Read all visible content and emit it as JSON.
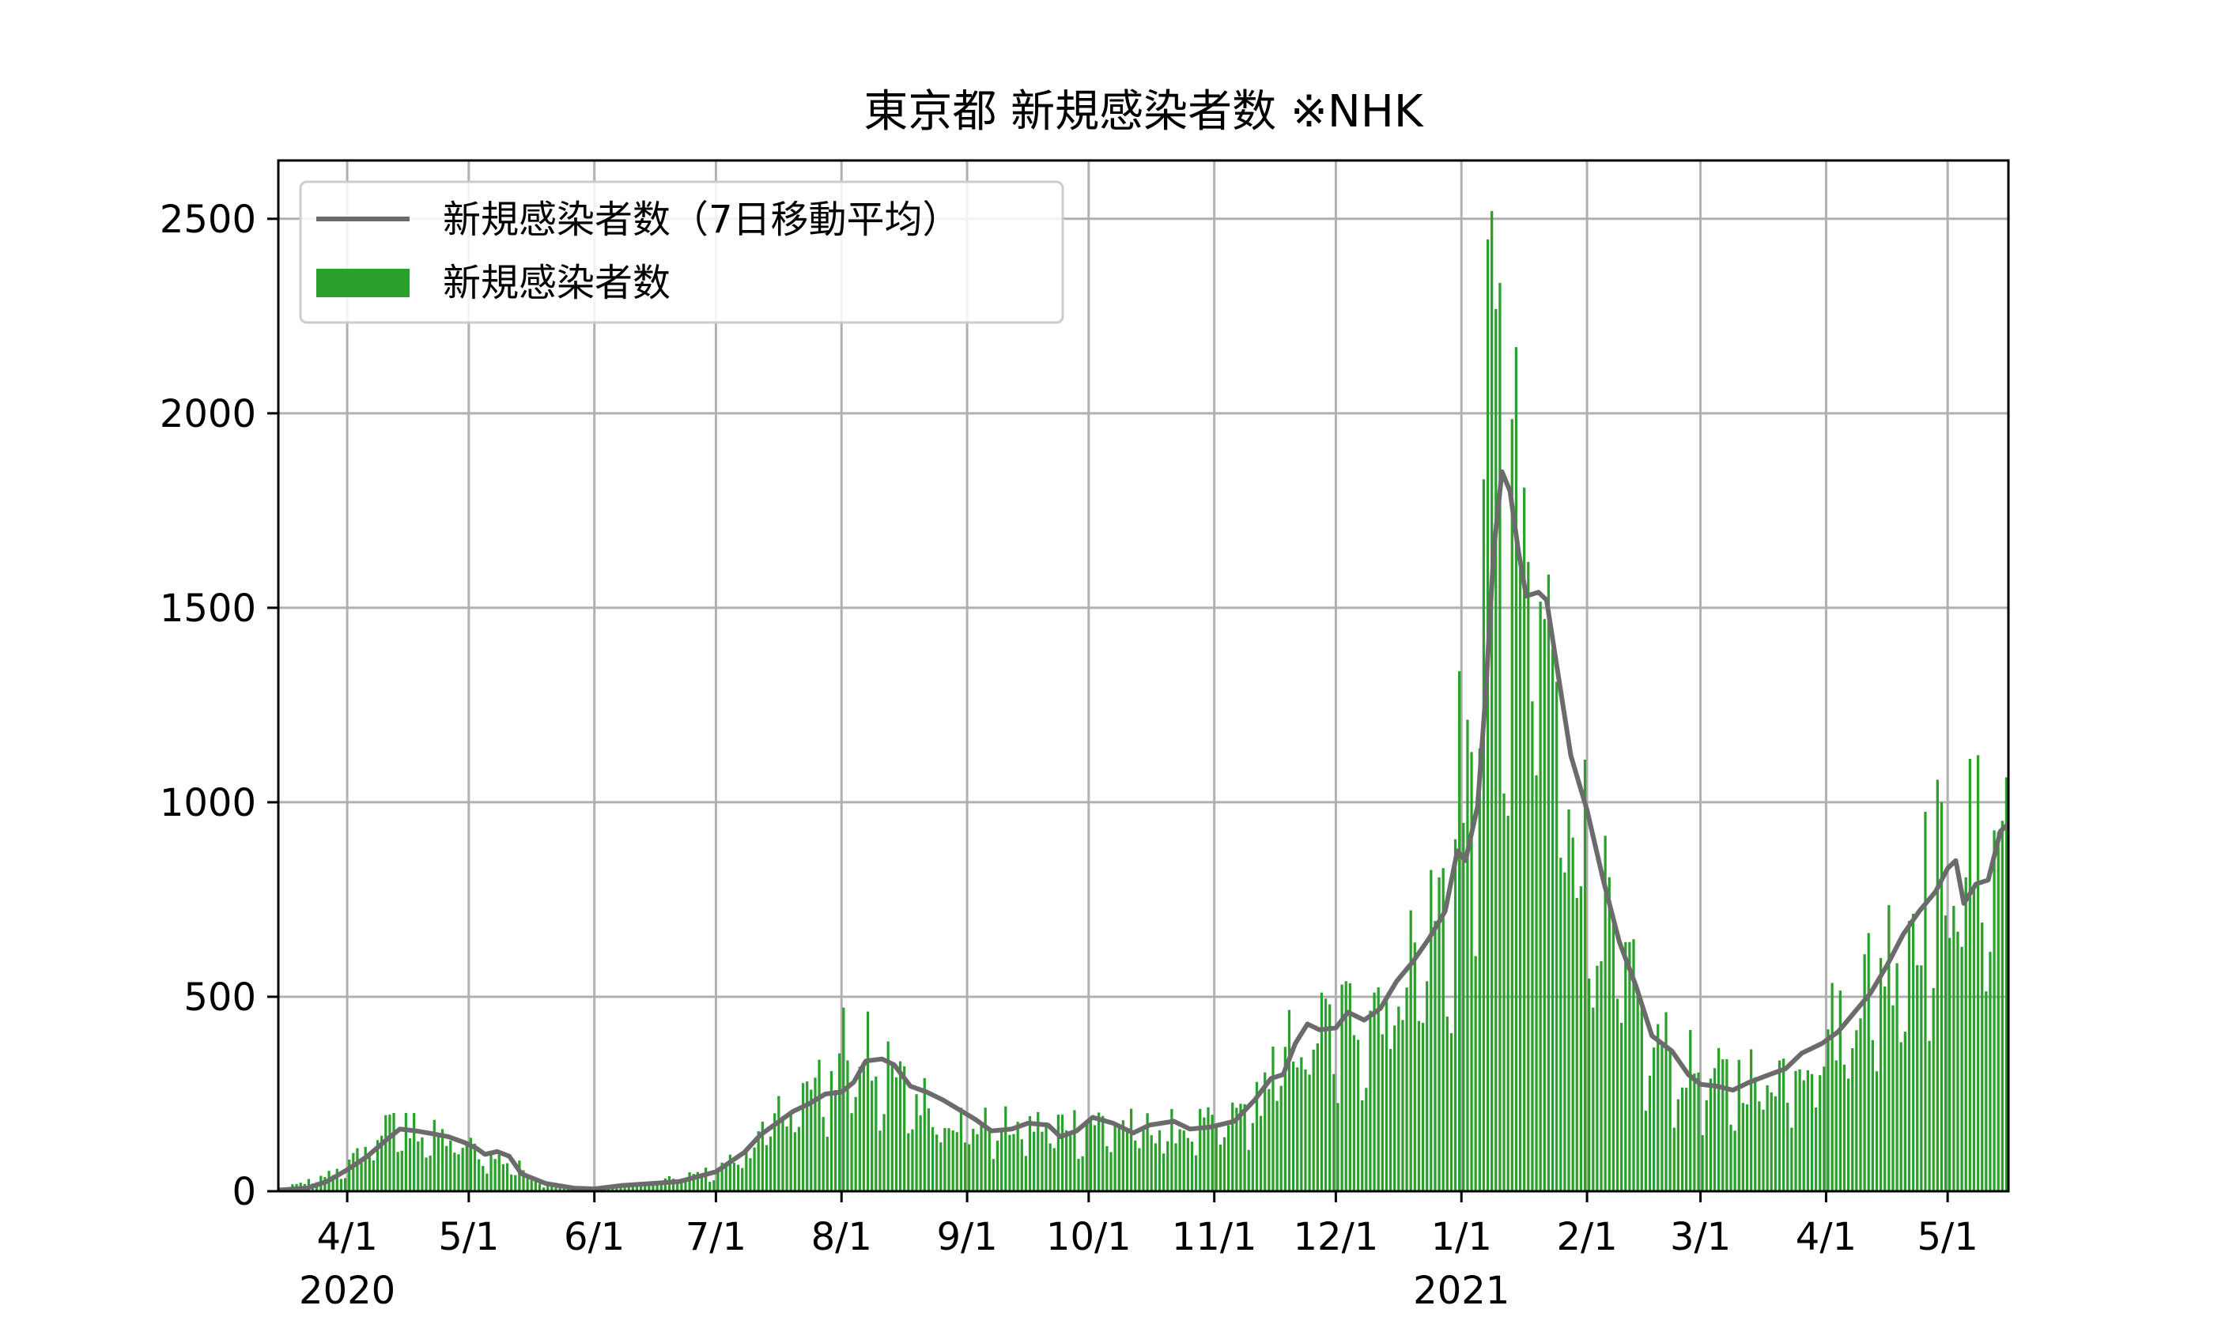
{
  "chart_data": {
    "type": "bar",
    "title": "東京都 新規感染者数 ※NHK",
    "xlabel": "",
    "ylabel": "",
    "x_range": [
      "2020-03-15",
      "2021-05-16"
    ],
    "ylim": [
      0,
      2650
    ],
    "x_ticks": [
      {
        "date": "2020-04-01",
        "label": "4/1"
      },
      {
        "date": "2020-05-01",
        "label": "5/1"
      },
      {
        "date": "2020-06-01",
        "label": "6/1"
      },
      {
        "date": "2020-07-01",
        "label": "7/1"
      },
      {
        "date": "2020-08-01",
        "label": "8/1"
      },
      {
        "date": "2020-09-01",
        "label": "9/1"
      },
      {
        "date": "2020-10-01",
        "label": "10/1"
      },
      {
        "date": "2020-11-01",
        "label": "11/1"
      },
      {
        "date": "2020-12-01",
        "label": "12/1"
      },
      {
        "date": "2021-01-01",
        "label": "1/1"
      },
      {
        "date": "2021-02-01",
        "label": "2/1"
      },
      {
        "date": "2021-03-01",
        "label": "3/1"
      },
      {
        "date": "2021-04-01",
        "label": "4/1"
      },
      {
        "date": "2021-05-01",
        "label": "5/1"
      }
    ],
    "year_labels": [
      {
        "date": "2020-04-01",
        "label": "2020"
      },
      {
        "date": "2021-01-01",
        "label": "2021"
      }
    ],
    "y_ticks": [
      0,
      500,
      1000,
      1500,
      2000,
      2500
    ],
    "grid": true,
    "legend_position": "top-left",
    "series": [
      {
        "name": "新規感染者数（7日移動平均）",
        "type": "line",
        "color": "#6b6b6b",
        "points": [
          [
            "2020-03-15",
            3
          ],
          [
            "2020-03-22",
            8
          ],
          [
            "2020-03-27",
            25
          ],
          [
            "2020-04-01",
            55
          ],
          [
            "2020-04-06",
            90
          ],
          [
            "2020-04-11",
            135
          ],
          [
            "2020-04-14",
            160
          ],
          [
            "2020-04-18",
            155
          ],
          [
            "2020-04-22",
            148
          ],
          [
            "2020-04-26",
            140
          ],
          [
            "2020-04-30",
            125
          ],
          [
            "2020-05-03",
            110
          ],
          [
            "2020-05-05",
            95
          ],
          [
            "2020-05-08",
            102
          ],
          [
            "2020-05-11",
            90
          ],
          [
            "2020-05-14",
            45
          ],
          [
            "2020-05-20",
            20
          ],
          [
            "2020-05-27",
            8
          ],
          [
            "2020-06-01",
            6
          ],
          [
            "2020-06-08",
            15
          ],
          [
            "2020-06-15",
            20
          ],
          [
            "2020-06-22",
            25
          ],
          [
            "2020-07-01",
            50
          ],
          [
            "2020-07-08",
            100
          ],
          [
            "2020-07-12",
            145
          ],
          [
            "2020-07-16",
            175
          ],
          [
            "2020-07-20",
            205
          ],
          [
            "2020-07-24",
            225
          ],
          [
            "2020-07-28",
            250
          ],
          [
            "2020-08-01",
            255
          ],
          [
            "2020-08-04",
            280
          ],
          [
            "2020-08-07",
            335
          ],
          [
            "2020-08-11",
            340
          ],
          [
            "2020-08-14",
            325
          ],
          [
            "2020-08-18",
            270
          ],
          [
            "2020-08-22",
            255
          ],
          [
            "2020-08-26",
            235
          ],
          [
            "2020-08-30",
            210
          ],
          [
            "2020-09-03",
            185
          ],
          [
            "2020-09-07",
            155
          ],
          [
            "2020-09-12",
            160
          ],
          [
            "2020-09-16",
            175
          ],
          [
            "2020-09-21",
            170
          ],
          [
            "2020-09-24",
            140
          ],
          [
            "2020-09-28",
            155
          ],
          [
            "2020-10-02",
            190
          ],
          [
            "2020-10-07",
            175
          ],
          [
            "2020-10-12",
            150
          ],
          [
            "2020-10-16",
            170
          ],
          [
            "2020-10-22",
            180
          ],
          [
            "2020-10-26",
            160
          ],
          [
            "2020-10-31",
            165
          ],
          [
            "2020-11-06",
            180
          ],
          [
            "2020-11-11",
            235
          ],
          [
            "2020-11-15",
            290
          ],
          [
            "2020-11-18",
            300
          ],
          [
            "2020-11-21",
            380
          ],
          [
            "2020-11-24",
            430
          ],
          [
            "2020-11-27",
            415
          ],
          [
            "2020-12-01",
            420
          ],
          [
            "2020-12-04",
            460
          ],
          [
            "2020-12-08",
            440
          ],
          [
            "2020-12-12",
            470
          ],
          [
            "2020-12-16",
            540
          ],
          [
            "2020-12-20",
            590
          ],
          [
            "2020-12-24",
            650
          ],
          [
            "2020-12-28",
            720
          ],
          [
            "2020-12-31",
            875
          ],
          [
            "2021-01-02",
            850
          ],
          [
            "2021-01-05",
            990
          ],
          [
            "2021-01-07",
            1280
          ],
          [
            "2021-01-09",
            1650
          ],
          [
            "2021-01-11",
            1850
          ],
          [
            "2021-01-13",
            1800
          ],
          [
            "2021-01-15",
            1650
          ],
          [
            "2021-01-17",
            1530
          ],
          [
            "2021-01-20",
            1540
          ],
          [
            "2021-01-22",
            1520
          ],
          [
            "2021-01-25",
            1320
          ],
          [
            "2021-01-28",
            1120
          ],
          [
            "2021-02-01",
            980
          ],
          [
            "2021-02-05",
            800
          ],
          [
            "2021-02-09",
            640
          ],
          [
            "2021-02-13",
            530
          ],
          [
            "2021-02-17",
            400
          ],
          [
            "2021-02-22",
            360
          ],
          [
            "2021-02-26",
            300
          ],
          [
            "2021-03-01",
            275
          ],
          [
            "2021-03-05",
            270
          ],
          [
            "2021-03-09",
            260
          ],
          [
            "2021-03-13",
            280
          ],
          [
            "2021-03-18",
            300
          ],
          [
            "2021-03-22",
            315
          ],
          [
            "2021-03-26",
            355
          ],
          [
            "2021-03-31",
            380
          ],
          [
            "2021-04-04",
            410
          ],
          [
            "2021-04-08",
            460
          ],
          [
            "2021-04-12",
            510
          ],
          [
            "2021-04-16",
            580
          ],
          [
            "2021-04-20",
            660
          ],
          [
            "2021-04-24",
            720
          ],
          [
            "2021-04-28",
            770
          ],
          [
            "2021-05-01",
            830
          ],
          [
            "2021-05-03",
            850
          ],
          [
            "2021-05-05",
            740
          ],
          [
            "2021-05-08",
            790
          ],
          [
            "2021-05-11",
            800
          ],
          [
            "2021-05-14",
            925
          ],
          [
            "2021-05-16",
            945
          ]
        ]
      },
      {
        "name": "新規感染者数",
        "type": "bar",
        "color": "#2ca02c",
        "anchors": [
          [
            "2020-03-15",
            5
          ],
          [
            "2020-03-25",
            35
          ],
          [
            "2020-04-01",
            70
          ],
          [
            "2020-04-08",
            150
          ],
          [
            "2020-04-14",
            175
          ],
          [
            "2020-04-20",
            150
          ],
          [
            "2020-04-28",
            130
          ],
          [
            "2020-05-05",
            95
          ],
          [
            "2020-05-12",
            70
          ],
          [
            "2020-05-20",
            15
          ],
          [
            "2020-06-01",
            8
          ],
          [
            "2020-06-15",
            22
          ],
          [
            "2020-07-01",
            55
          ],
          [
            "2020-07-10",
            125
          ],
          [
            "2020-07-18",
            230
          ],
          [
            "2020-07-28",
            285
          ],
          [
            "2020-08-03",
            360
          ],
          [
            "2020-08-10",
            320
          ],
          [
            "2020-08-20",
            245
          ],
          [
            "2020-09-01",
            175
          ],
          [
            "2020-09-15",
            170
          ],
          [
            "2020-10-01",
            185
          ],
          [
            "2020-10-15",
            165
          ],
          [
            "2020-11-01",
            170
          ],
          [
            "2020-11-10",
            230
          ],
          [
            "2020-11-20",
            400
          ],
          [
            "2020-12-01",
            440
          ],
          [
            "2020-12-15",
            560
          ],
          [
            "2020-12-25",
            720
          ],
          [
            "2021-01-01",
            920
          ],
          [
            "2021-01-07",
            1700
          ],
          [
            "2021-01-10",
            2000
          ],
          [
            "2021-01-14",
            1750
          ],
          [
            "2021-01-21",
            1500
          ],
          [
            "2021-01-28",
            1050
          ],
          [
            "2021-02-05",
            720
          ],
          [
            "2021-02-15",
            420
          ],
          [
            "2021-02-25",
            330
          ],
          [
            "2021-03-05",
            290
          ],
          [
            "2021-03-20",
            320
          ],
          [
            "2021-04-01",
            420
          ],
          [
            "2021-04-15",
            620
          ],
          [
            "2021-04-28",
            850
          ],
          [
            "2021-05-10",
            900
          ],
          [
            "2021-05-16",
            1000
          ]
        ],
        "peaks": [
          [
            "2020-04-11",
            197
          ],
          [
            "2020-04-17",
            201
          ],
          [
            "2020-08-01",
            472
          ],
          [
            "2020-08-07",
            462
          ],
          [
            "2020-12-31",
            1337
          ],
          [
            "2021-01-07",
            2447
          ],
          [
            "2021-01-08",
            2520
          ],
          [
            "2021-01-09",
            2268
          ],
          [
            "2021-01-16",
            1809
          ],
          [
            "2021-01-21",
            1471
          ],
          [
            "2021-05-08",
            1121
          ]
        ]
      }
    ]
  }
}
